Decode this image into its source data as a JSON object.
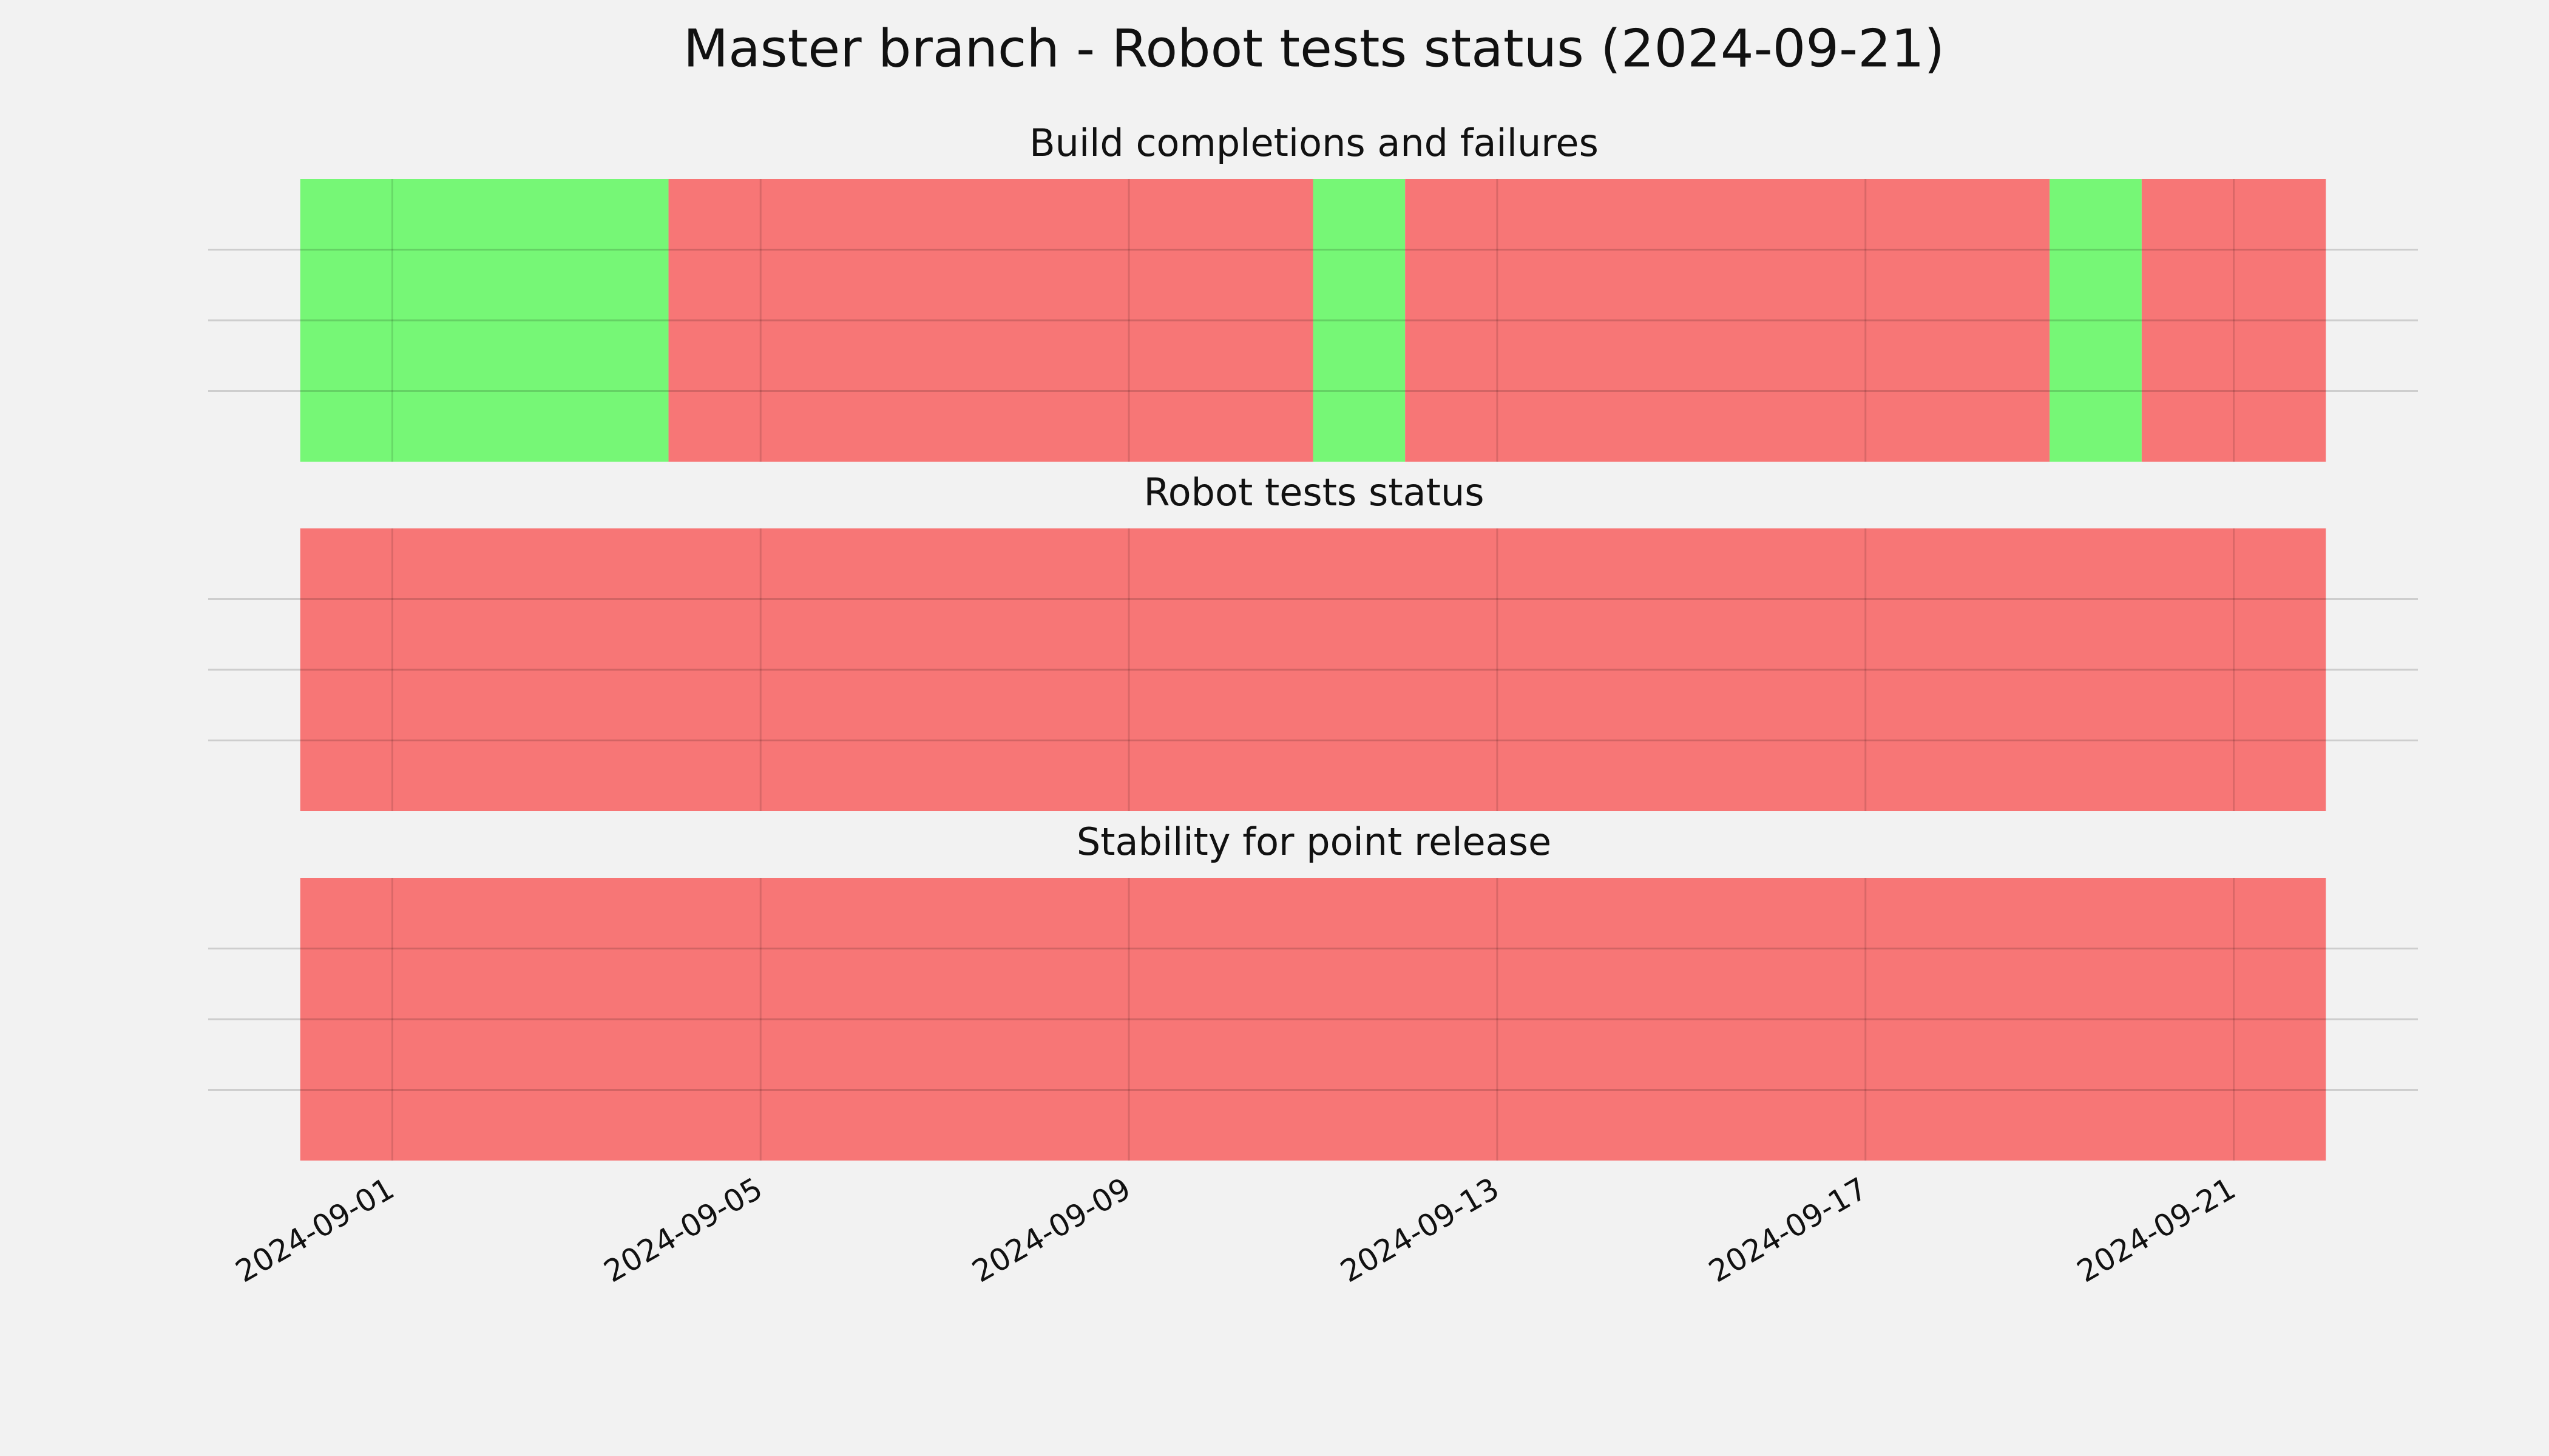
{
  "title": "Master branch - Robot tests status (2024-09-21)",
  "chart_data": [
    {
      "type": "timeline",
      "title": "Build completions and failures",
      "segments": [
        {
          "start": "2024-08-31",
          "end": "2024-09-04",
          "color": "#76f776"
        },
        {
          "start": "2024-09-04",
          "end": "2024-09-11",
          "color": "#f77676"
        },
        {
          "start": "2024-09-11",
          "end": "2024-09-12",
          "color": "#76f776"
        },
        {
          "start": "2024-09-12",
          "end": "2024-09-19",
          "color": "#f77676"
        },
        {
          "start": "2024-09-19",
          "end": "2024-09-20",
          "color": "#76f776"
        },
        {
          "start": "2024-09-20",
          "end": "2024-09-22",
          "color": "#f77676"
        }
      ],
      "xlim": [
        "2024-08-30",
        "2024-09-23"
      ],
      "xticks": [
        "2024-09-01",
        "2024-09-05",
        "2024-09-09",
        "2024-09-13",
        "2024-09-17",
        "2024-09-21"
      ],
      "ylim": [
        0,
        1
      ],
      "yticks": [
        0.25,
        0.5,
        0.75
      ],
      "grid": true
    },
    {
      "type": "timeline",
      "title": "Robot tests status",
      "segments": [
        {
          "start": "2024-08-31",
          "end": "2024-09-22",
          "color": "#f77676"
        }
      ],
      "xlim": [
        "2024-08-30",
        "2024-09-23"
      ],
      "xticks": [
        "2024-09-01",
        "2024-09-05",
        "2024-09-09",
        "2024-09-13",
        "2024-09-17",
        "2024-09-21"
      ],
      "ylim": [
        0,
        1
      ],
      "yticks": [
        0.25,
        0.5,
        0.75
      ],
      "grid": true
    },
    {
      "type": "timeline",
      "title": "Stability for point release",
      "segments": [
        {
          "start": "2024-08-31",
          "end": "2024-09-22",
          "color": "#f77676"
        }
      ],
      "xlim": [
        "2024-08-30",
        "2024-09-23"
      ],
      "xticks": [
        "2024-09-01",
        "2024-09-05",
        "2024-09-09",
        "2024-09-13",
        "2024-09-17",
        "2024-09-21"
      ],
      "ylim": [
        0,
        1
      ],
      "yticks": [
        0.25,
        0.5,
        0.75
      ],
      "grid": true
    }
  ]
}
